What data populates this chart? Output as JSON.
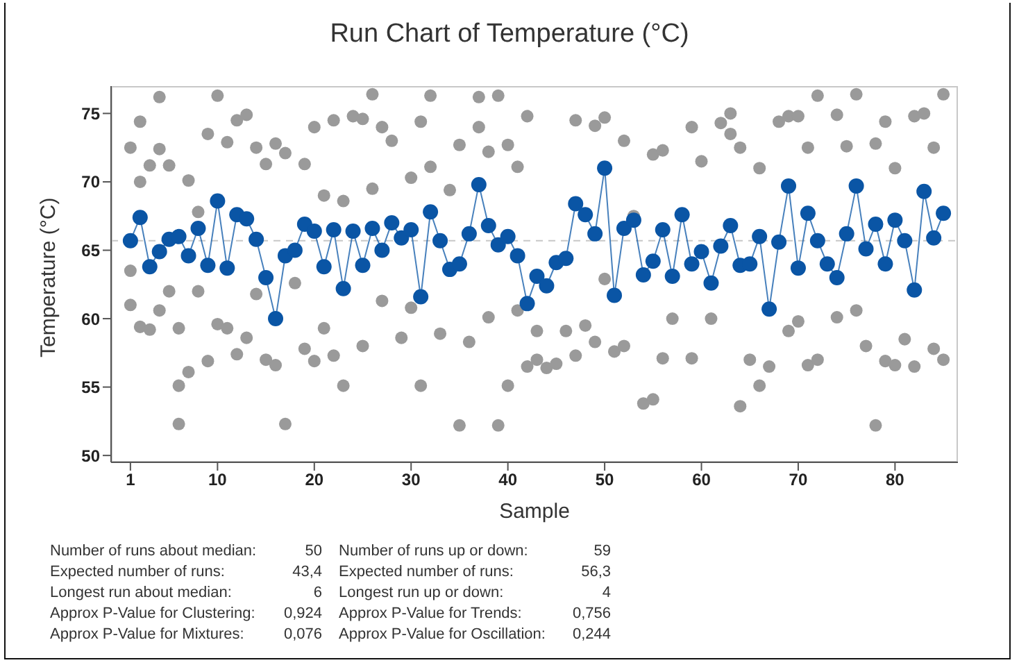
{
  "chart_data": {
    "type": "scatter",
    "title": "Run Chart of Temperature (°C)",
    "xlabel": "Sample",
    "ylabel": "Temperature (°C)",
    "xlim": [
      -1,
      86.5
    ],
    "xticks": [
      1,
      10,
      20,
      30,
      40,
      50,
      60,
      70,
      80
    ],
    "ylim": [
      49.5,
      77
    ],
    "yticks": [
      50,
      55,
      60,
      65,
      70,
      75
    ],
    "grid": false,
    "marker": "circle",
    "ref_lines": [
      {
        "axis": "y",
        "value": 65.7,
        "color": "#c8c8c8",
        "line_style": "dashed"
      }
    ],
    "series": [
      {
        "color": "#9a9a9a",
        "x": [
          1,
          1,
          1,
          2,
          2,
          2,
          3,
          3,
          4,
          4,
          4,
          5,
          5,
          6,
          6,
          6,
          7,
          7,
          8,
          8,
          9,
          9,
          10,
          10,
          11,
          11,
          12,
          12,
          13,
          13,
          14,
          14,
          15,
          15,
          16,
          16,
          17,
          17,
          18,
          19,
          19,
          20,
          20,
          21,
          21,
          22,
          22,
          23,
          23,
          24,
          25,
          25,
          26,
          26,
          27,
          27,
          28,
          29,
          30,
          30,
          31,
          31,
          32,
          32,
          33,
          34,
          35,
          35,
          36,
          37,
          37,
          38,
          38,
          39,
          39,
          40,
          40,
          41,
          41,
          42,
          42,
          43,
          43,
          44,
          45,
          46,
          47,
          47,
          48,
          49,
          49,
          50,
          50,
          51,
          52,
          52,
          53,
          54,
          55,
          55,
          56,
          56,
          57,
          59,
          59,
          60,
          61,
          62,
          63,
          63,
          64,
          64,
          65,
          66,
          66,
          67,
          68,
          69,
          69,
          70,
          70,
          71,
          71,
          72,
          72,
          74,
          74,
          75,
          76,
          76,
          77,
          78,
          78,
          79,
          79,
          80,
          80,
          81,
          82,
          82,
          83,
          84,
          84,
          85,
          85
        ],
        "values": [
          72.5,
          63.5,
          61.0,
          74.4,
          59.4,
          70.0,
          71.2,
          59.2,
          76.2,
          72.4,
          60.6,
          71.2,
          62.0,
          55.1,
          52.3,
          59.3,
          56.1,
          70.1,
          67.8,
          62.0,
          73.5,
          56.9,
          76.3,
          59.6,
          72.9,
          59.3,
          74.5,
          57.4,
          74.9,
          58.6,
          72.5,
          61.8,
          57.0,
          71.3,
          56.6,
          72.8,
          52.3,
          72.1,
          62.6,
          71.3,
          57.8,
          74.0,
          56.9,
          69.0,
          59.3,
          74.5,
          57.3,
          55.1,
          68.6,
          74.8,
          74.6,
          58.0,
          76.4,
          69.5,
          74.0,
          61.3,
          73.0,
          58.6,
          70.3,
          60.8,
          55.1,
          74.4,
          76.3,
          71.1,
          58.9,
          69.4,
          52.2,
          72.7,
          58.3,
          76.2,
          74.0,
          72.2,
          60.1,
          76.3,
          52.2,
          55.1,
          72.7,
          71.1,
          60.6,
          74.8,
          56.5,
          57.0,
          59.1,
          56.4,
          56.7,
          59.1,
          74.5,
          57.3,
          59.5,
          74.1,
          58.3,
          74.7,
          62.9,
          57.6,
          73.0,
          58.0,
          67.5,
          53.8,
          54.1,
          72.0,
          72.3,
          57.1,
          60.0,
          74.0,
          57.1,
          71.5,
          60.0,
          74.3,
          75.0,
          73.5,
          53.6,
          72.5,
          57.0,
          55.1,
          71.0,
          56.5,
          74.4,
          74.8,
          59.1,
          74.8,
          59.8,
          72.5,
          56.6,
          76.3,
          57.0,
          74.9,
          60.1,
          72.6,
          76.4,
          60.6,
          58.0,
          52.2,
          72.8,
          74.4,
          56.9,
          71.0,
          56.6,
          58.5,
          74.8,
          56.5,
          75.0,
          57.8,
          72.5,
          76.4,
          57.0
        ]
      },
      {
        "type": "line",
        "color": "#0a55a5",
        "line_style": "solid",
        "x": [
          1,
          2,
          3,
          4,
          5,
          6,
          7,
          8,
          9,
          10,
          11,
          12,
          13,
          14,
          15,
          16,
          17,
          18,
          19,
          20,
          21,
          22,
          23,
          24,
          25,
          26,
          27,
          28,
          29,
          30,
          31,
          32,
          33,
          34,
          35,
          36,
          37,
          38,
          39,
          40,
          41,
          42,
          43,
          44,
          45,
          46,
          47,
          48,
          49,
          50,
          51,
          52,
          53,
          54,
          55,
          56,
          57,
          58,
          59,
          60,
          61,
          62,
          63,
          64,
          65,
          66,
          67,
          68,
          69,
          70,
          71,
          72,
          73,
          74,
          75,
          76,
          77,
          78,
          79,
          80,
          81,
          82,
          83,
          84,
          85
        ],
        "values": [
          65.7,
          67.4,
          63.8,
          64.9,
          65.8,
          66.0,
          64.6,
          66.6,
          63.9,
          68.6,
          63.7,
          67.6,
          67.3,
          65.8,
          63.0,
          60.0,
          64.6,
          65.0,
          66.9,
          66.4,
          63.8,
          66.5,
          62.2,
          66.4,
          63.9,
          66.6,
          65.0,
          67.0,
          65.9,
          66.5,
          61.6,
          67.8,
          65.7,
          63.6,
          64.0,
          66.2,
          69.8,
          66.8,
          65.4,
          66.0,
          64.6,
          61.1,
          63.1,
          62.4,
          64.1,
          64.4,
          68.4,
          67.6,
          66.2,
          71.0,
          61.7,
          66.6,
          67.2,
          63.2,
          64.2,
          66.5,
          63.1,
          67.6,
          64.0,
          64.9,
          62.6,
          65.3,
          66.8,
          63.9,
          64.0,
          66.0,
          60.7,
          65.6,
          69.7,
          63.7,
          67.7,
          65.7,
          64.0,
          63.0,
          66.2,
          69.7,
          65.1,
          66.9,
          64.0,
          67.2,
          65.7,
          62.1,
          69.3,
          65.9,
          67.7
        ]
      }
    ],
    "annotations": [
      "Number of runs about median:",
      "50",
      "Number of runs up or down:",
      "59",
      "Expected number of runs:",
      "43,4",
      "Expected number of runs:",
      "56,3",
      "Longest run about median:",
      "6",
      "Longest run up or down:",
      "4",
      "Approx P-Value for Clustering:",
      "0,924",
      "Approx P-Value for Trends:",
      "0,756",
      "Approx P-Value for Mixtures:",
      "0,076",
      "Approx P-Value for Oscillation:",
      "0,244"
    ]
  }
}
